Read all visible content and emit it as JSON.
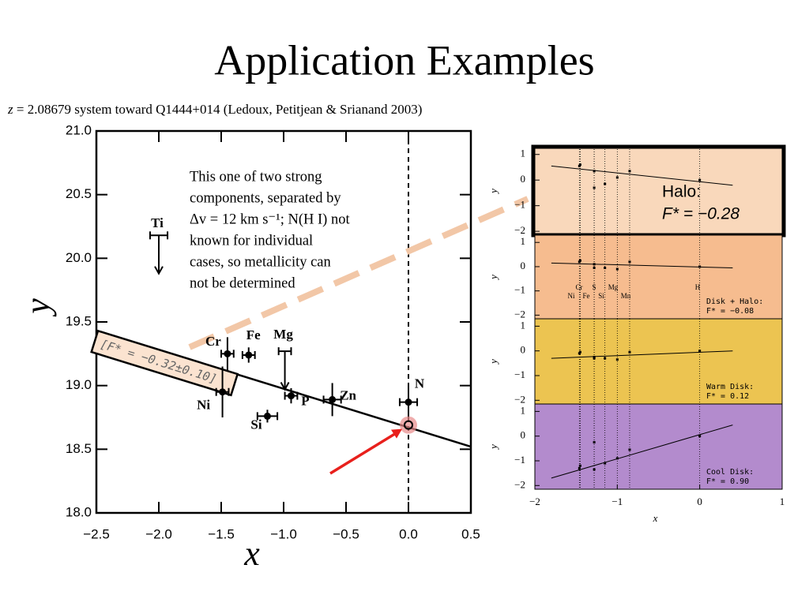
{
  "title": "Application Examples",
  "subtitle": {
    "z": "z",
    "rest": "= 2.08679 system toward Q1444+014 (Ledoux, Petitjean & Srianand 2003)"
  },
  "note": [
    "This one of two strong",
    "components, separated by",
    "Δv = 12 km s⁻¹; N(H I) not",
    "known for individual",
    "cases, so metallicity can",
    "not be determined"
  ],
  "chart_data": [
    {
      "type": "scatter",
      "xlabel": "x",
      "ylabel": "y",
      "xlim": [
        -2.5,
        0.5
      ],
      "ylim": [
        18.0,
        21.0
      ],
      "xticks": [
        {
          "value": -2.5,
          "label": "−2.5"
        },
        {
          "value": -2.0,
          "label": "−2.0"
        },
        {
          "value": -1.5,
          "label": "−1.5"
        },
        {
          "value": -1.0,
          "label": "−1.0"
        },
        {
          "value": -0.5,
          "label": "−0.5"
        },
        {
          "value": 0,
          "label": "0.0"
        },
        {
          "value": 0.5,
          "label": "0.5"
        }
      ],
      "yticks": [
        {
          "value": 18,
          "label": "18.0"
        },
        18.5,
        {
          "value": 19,
          "label": "19.0"
        },
        19.5,
        {
          "value": 20,
          "label": "20.0"
        },
        20.5,
        {
          "value": 21,
          "label": "21.0"
        }
      ],
      "labels": [
        "Ti",
        "Cr",
        "Fe",
        "Mg",
        "Ni",
        "Si",
        "P",
        "Zn",
        "N"
      ],
      "x": [
        -2.0,
        -1.45,
        -1.28,
        -0.99,
        -1.49,
        -1.13,
        -0.94,
        -0.61,
        0.0
      ],
      "values": [
        20.18,
        19.25,
        19.24,
        19.27,
        18.95,
        18.76,
        18.92,
        18.89,
        18.87
      ],
      "x_errors": [
        0.07,
        0.05,
        0.05,
        0.05,
        0.05,
        0.08,
        0.05,
        0.07,
        0.07
      ],
      "y_errors": [
        0.3,
        0.13,
        0.06,
        0.3,
        0.2,
        0.05,
        0.06,
        0.13,
        0.13
      ],
      "upper_limit": [
        true,
        false,
        false,
        true,
        false,
        false,
        false,
        false,
        false
      ],
      "fit": {
        "label": "[F* = −0.32±0.10]",
        "x": [
          -2.5,
          0.5
        ],
        "values": [
          19.43,
          18.52
        ]
      },
      "vline": 0,
      "highlight": {
        "x": 0.0,
        "value": 18.69
      }
    },
    {
      "type": "panels",
      "xlabel": "x",
      "ylabel": "y",
      "xlim": [
        -2,
        1
      ],
      "ylim": [
        -2.15,
        1.3
      ],
      "xticks": [
        {
          "value": -2,
          "label": "−2"
        },
        {
          "value": -1,
          "label": "−1"
        },
        0,
        1
      ],
      "yticks": [
        {
          "value": -2,
          "label": "−2"
        },
        {
          "value": -1,
          "label": "−1"
        },
        0,
        1
      ],
      "element_labels": [
        "Cr",
        "S",
        "Mg",
        "H",
        "Ni",
        "Fe",
        "Si",
        "Mn"
      ],
      "panels": [
        {
          "name": "Halo:",
          "f_label": "F* = −0.28",
          "color": "#f9d8bb",
          "x": [
            -1.46,
            -1.45,
            -1.28,
            -1.28,
            -1.15,
            -1.0,
            -0.85,
            0.0
          ],
          "values": [
            0.55,
            0.6,
            0.35,
            -0.3,
            -0.15,
            0.1,
            0.35,
            0.0
          ],
          "fit": {
            "x": [
              -1.8,
              0.4
            ],
            "values": [
              0.55,
              -0.2
            ]
          }
        },
        {
          "name": "Disk + Halo:",
          "f_label": "F* = −0.08",
          "color": "#f6bc8f",
          "x": [
            -1.46,
            -1.45,
            -1.28,
            -1.28,
            -1.15,
            -1.0,
            -0.85,
            0.0
          ],
          "values": [
            0.2,
            0.25,
            0.1,
            -0.05,
            -0.05,
            -0.1,
            0.2,
            0.0
          ],
          "fit": {
            "x": [
              -1.8,
              0.4
            ],
            "values": [
              0.15,
              -0.05
            ]
          }
        },
        {
          "name": "Warm Disk:",
          "f_label": "F* = 0.12",
          "color": "#ecc451",
          "x": [
            -1.46,
            -1.45,
            -1.28,
            -1.28,
            -1.15,
            -1.0,
            -0.85,
            0.0
          ],
          "values": [
            -0.1,
            -0.05,
            -0.3,
            -0.25,
            -0.3,
            -0.35,
            -0.05,
            0.0
          ],
          "fit": {
            "x": [
              -1.8,
              0.4
            ],
            "values": [
              -0.3,
              -0.0
            ]
          }
        },
        {
          "name": "Cool Disk:",
          "f_label": "F* = 0.90",
          "color": "#b38bcd",
          "x": [
            -1.46,
            -1.45,
            -1.28,
            -1.28,
            -1.15,
            -1.0,
            -0.85,
            0.0
          ],
          "values": [
            -1.3,
            -1.2,
            -1.35,
            -0.25,
            -1.1,
            -0.9,
            -0.55,
            0.0
          ],
          "fit": {
            "x": [
              -1.8,
              0.4
            ],
            "values": [
              -1.7,
              0.45
            ]
          }
        }
      ]
    }
  ]
}
